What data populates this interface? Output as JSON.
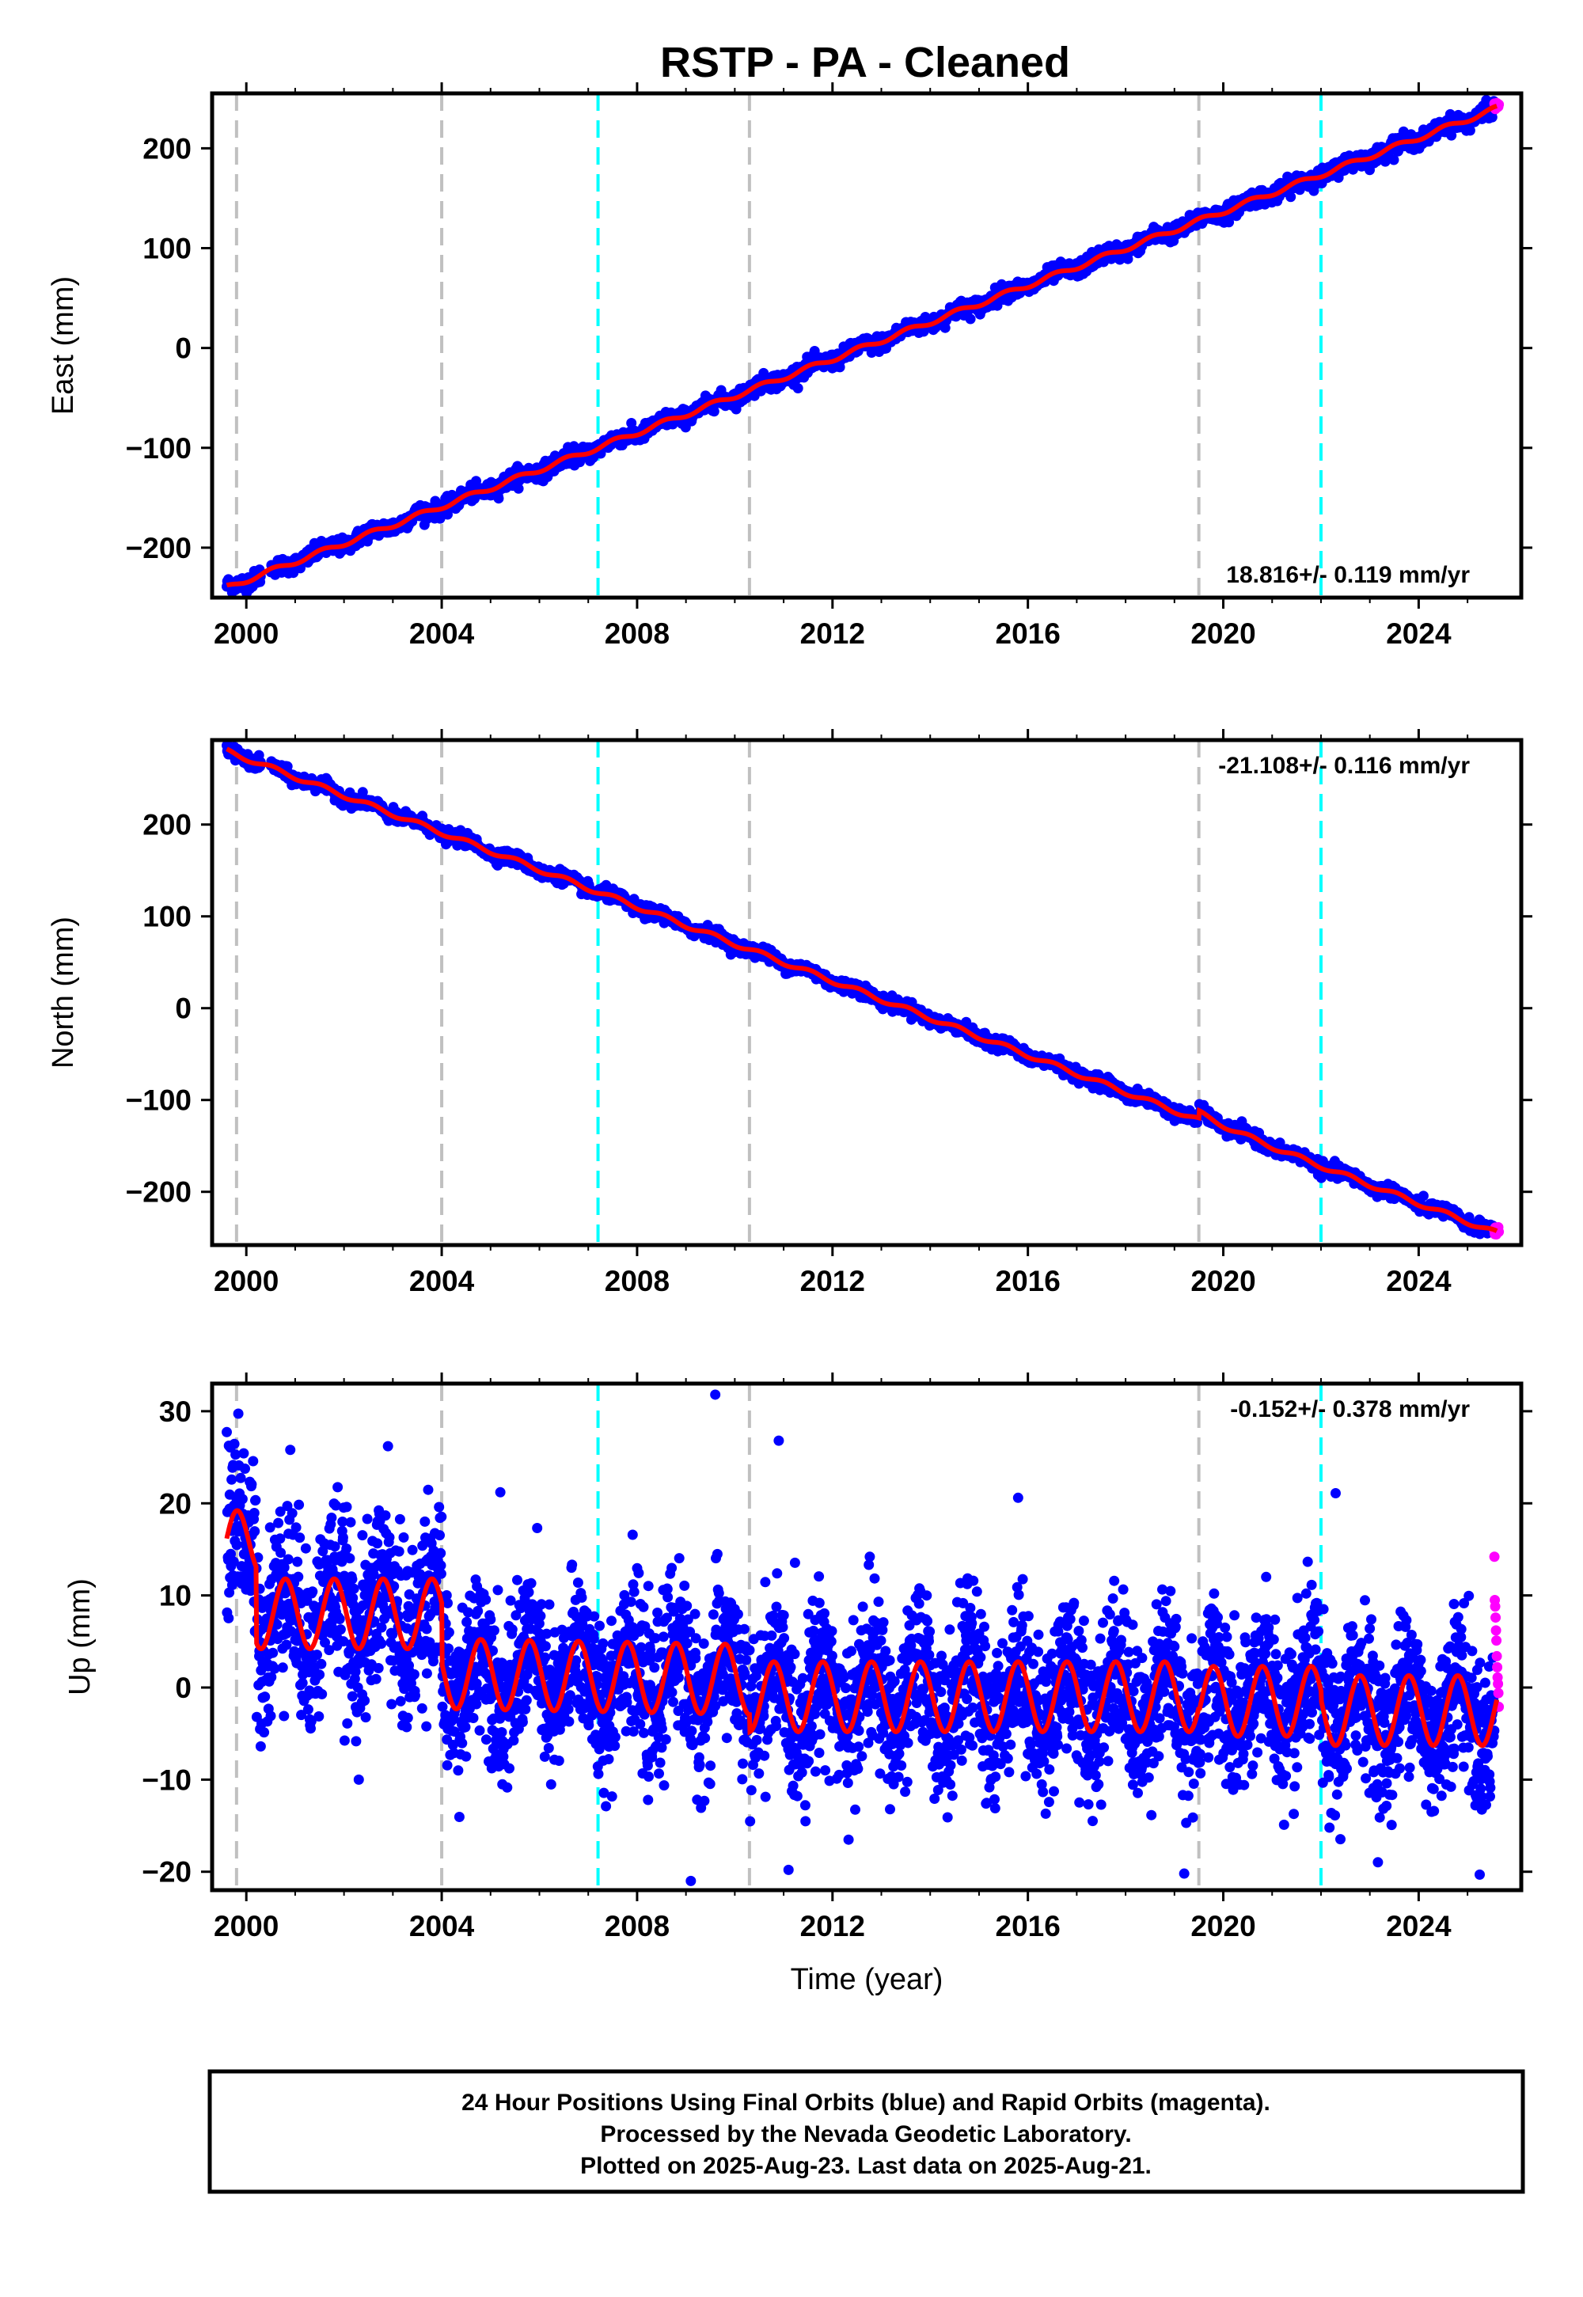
{
  "title": "RSTP  - PA - Cleaned",
  "colors": {
    "final_orbits": "#0000ff",
    "rapid_orbits": "#ff00ff",
    "model_fit": "#ff0000",
    "event_gray": "#c0c0c0",
    "event_cyan": "#00ffff"
  },
  "chart_data": [
    {
      "type": "scatter",
      "panel": "east",
      "ylabel": "East (mm)",
      "xlabel": "",
      "xlim": [
        1999.3,
        2026.1
      ],
      "ylim": [
        -250,
        255
      ],
      "xticks": [
        2000,
        2004,
        2008,
        2012,
        2016,
        2020,
        2024
      ],
      "yticks": [
        -200,
        -100,
        0,
        100,
        200
      ],
      "ytick_labels": [
        "−200",
        "−100",
        "0",
        "100",
        "200"
      ],
      "rate_label": "18.816+/- 0.119 mm/yr",
      "rate_label_position": "bottom-right",
      "trend": {
        "x": [
          1999.6,
          2025.6
        ],
        "y": [
          -240,
          240
        ]
      },
      "series": [
        {
          "style": "final-orbits-points",
          "x_range": [
            1999.6,
            2025.55
          ],
          "noise": 4
        },
        {
          "style": "rapid-orbits-points",
          "x_range": [
            2025.55,
            2025.64
          ],
          "noise": 2
        },
        {
          "style": "model-line"
        }
      ],
      "event_lines": [
        {
          "x": 1999.8,
          "style": "gray"
        },
        {
          "x": 2004.0,
          "style": "gray"
        },
        {
          "x": 2007.2,
          "style": "cyan"
        },
        {
          "x": 2010.3,
          "style": "gray"
        },
        {
          "x": 2019.5,
          "style": "gray"
        },
        {
          "x": 2022.0,
          "style": "cyan"
        }
      ]
    },
    {
      "type": "scatter",
      "panel": "north",
      "ylabel": "North (mm)",
      "xlabel": "",
      "xlim": [
        1999.3,
        2026.1
      ],
      "ylim": [
        -258,
        292
      ],
      "xticks": [
        2000,
        2004,
        2008,
        2012,
        2016,
        2020,
        2024
      ],
      "yticks": [
        -200,
        -100,
        0,
        100,
        200
      ],
      "ytick_labels": [
        "−200",
        "−100",
        "0",
        "100",
        "200"
      ],
      "rate_label": "-21.108+/- 0.116 mm/yr",
      "rate_label_position": "top-right",
      "trend": {
        "x": [
          1999.6,
          2025.6
        ],
        "y": [
          280,
          -245
        ]
      },
      "offset_event": {
        "x": 2019.5,
        "jump_mm": 8
      },
      "series": [
        {
          "style": "final-orbits-points",
          "x_range": [
            1999.6,
            2025.55
          ],
          "noise": 3.5
        },
        {
          "style": "rapid-orbits-points",
          "x_range": [
            2025.55,
            2025.64
          ],
          "noise": 2
        },
        {
          "style": "model-line"
        }
      ],
      "event_lines": [
        {
          "x": 1999.8,
          "style": "gray"
        },
        {
          "x": 2004.0,
          "style": "gray"
        },
        {
          "x": 2007.2,
          "style": "cyan"
        },
        {
          "x": 2010.3,
          "style": "gray"
        },
        {
          "x": 2019.5,
          "style": "gray"
        },
        {
          "x": 2022.0,
          "style": "cyan"
        }
      ]
    },
    {
      "type": "scatter",
      "panel": "up",
      "ylabel": "Up (mm)",
      "xlabel": "Time (year)",
      "xlim": [
        1999.3,
        2026.1
      ],
      "ylim": [
        -22,
        33
      ],
      "xticks": [
        2000,
        2004,
        2008,
        2012,
        2016,
        2020,
        2024
      ],
      "yticks": [
        -20,
        -10,
        0,
        10,
        20,
        30
      ],
      "ytick_labels": [
        "−20",
        "−10",
        "0",
        "10",
        "20",
        "30"
      ],
      "rate_label": "-0.152+/- 0.378 mm/yr",
      "rate_label_position": "top-right",
      "seasonal_amplitude_mm": 3.8,
      "segments": [
        {
          "x_range": [
            1999.6,
            2000.2
          ],
          "mean": 15,
          "trend_per_yr": 2
        },
        {
          "x_range": [
            2000.2,
            2004.0
          ],
          "mean": 8,
          "trend_per_yr": 0
        },
        {
          "x_range": [
            2004.0,
            2010.3
          ],
          "mean": 1.5,
          "trend_per_yr": -0.1
        },
        {
          "x_range": [
            2010.3,
            2019.5
          ],
          "mean": -1,
          "trend_per_yr": 0
        },
        {
          "x_range": [
            2019.5,
            2022.0
          ],
          "mean": -1.5,
          "trend_per_yr": 0
        },
        {
          "x_range": [
            2022.0,
            2025.6
          ],
          "mean": -2.5,
          "trend_per_yr": 0
        }
      ],
      "series": [
        {
          "style": "final-orbits-points",
          "x_range": [
            1999.6,
            2025.55
          ],
          "noise": 4.2
        },
        {
          "style": "rapid-orbits-points",
          "x_range": [
            2025.55,
            2025.64
          ],
          "y_values": [
            14.2,
            9.5,
            8.8,
            7.6,
            6.2,
            5.1,
            3.4,
            2.2,
            1.1,
            0.4,
            -0.6,
            -2.1
          ]
        },
        {
          "style": "model-line"
        }
      ],
      "outliers": [
        {
          "x": 2009.6,
          "y": 31.8
        },
        {
          "x": 2010.9,
          "y": 26.8
        },
        {
          "x": 2002.9,
          "y": 26.2
        },
        {
          "x": 2000.9,
          "y": 25.8
        },
        {
          "x": 2015.8,
          "y": 20.6
        },
        {
          "x": 2022.3,
          "y": 21.1
        },
        {
          "x": 2005.2,
          "y": 21.2
        },
        {
          "x": 2009.1,
          "y": -21.0
        },
        {
          "x": 2011.1,
          "y": -19.8
        },
        {
          "x": 2019.2,
          "y": -20.2
        }
      ],
      "event_lines": [
        {
          "x": 1999.8,
          "style": "gray"
        },
        {
          "x": 2004.0,
          "style": "gray"
        },
        {
          "x": 2007.2,
          "style": "cyan"
        },
        {
          "x": 2010.3,
          "style": "gray"
        },
        {
          "x": 2019.5,
          "style": "gray"
        },
        {
          "x": 2022.0,
          "style": "cyan"
        }
      ]
    }
  ],
  "footer": {
    "line1": "24 Hour Positions Using Final Orbits (blue) and Rapid Orbits (magenta).",
    "line2": "Processed by the Nevada Geodetic Laboratory.",
    "line3": "Plotted on 2025-Aug-23. Last data on 2025-Aug-21."
  }
}
